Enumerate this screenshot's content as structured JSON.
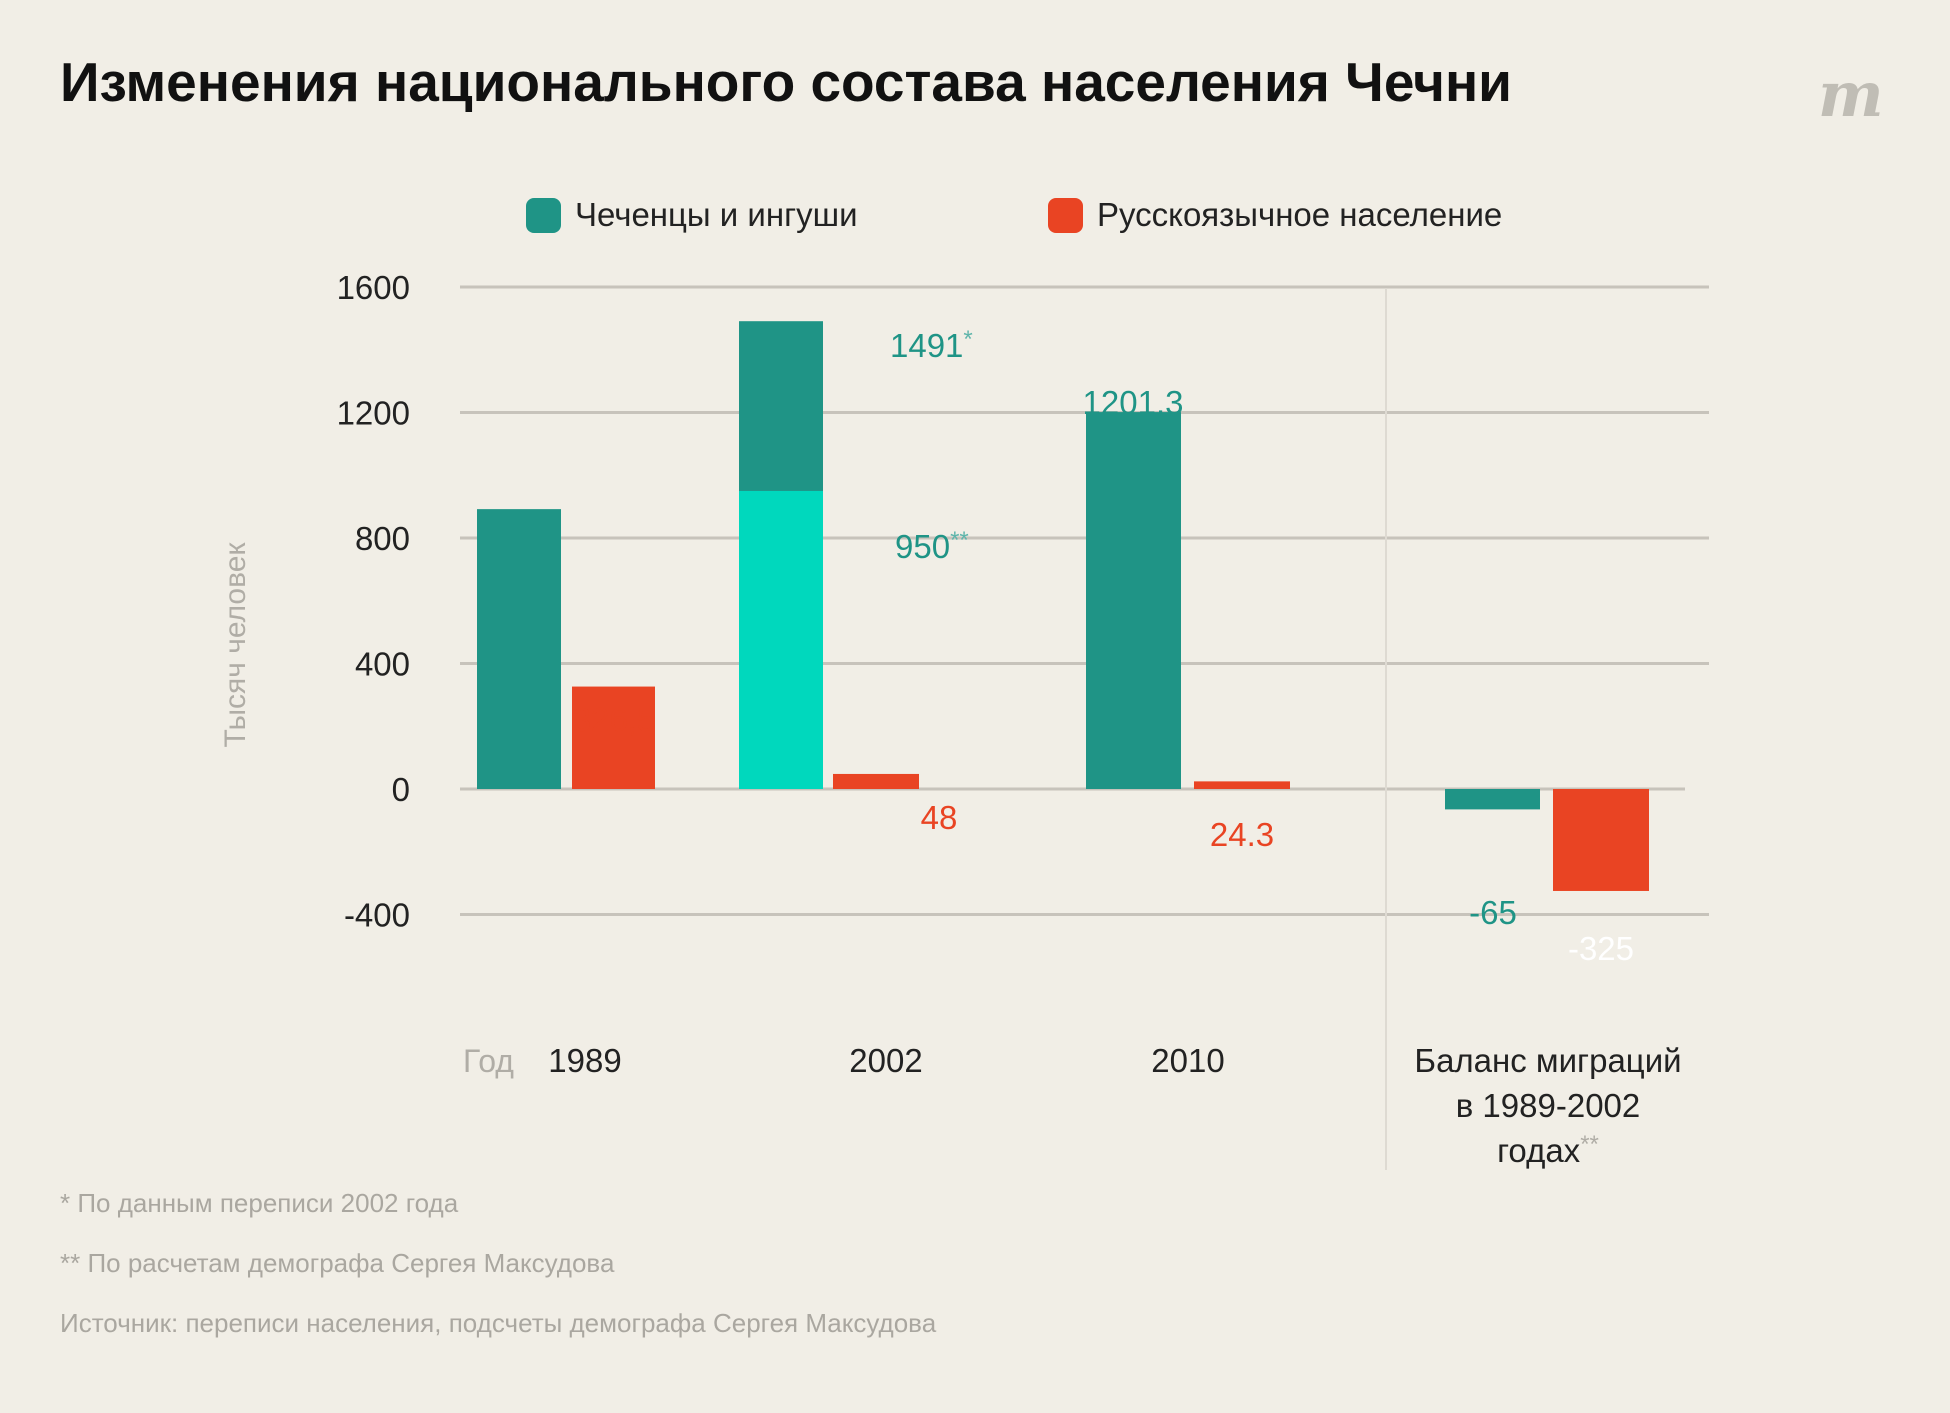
{
  "title": "Изменения национального состава населения Чечни",
  "logo": "m",
  "colors": {
    "chechen": "#1f9486",
    "chechen_light": "#00d8bd",
    "russian": "#e94423",
    "grid": "#c7c3bb",
    "axis_label": "#b0ada6"
  },
  "legend": [
    {
      "label": "Чеченцы и ингуши",
      "color": "#1f9486"
    },
    {
      "label": "Русскоязычное население",
      "color": "#e94423"
    }
  ],
  "chart_data": {
    "type": "bar",
    "ylabel": "Тысяч человек",
    "xlabel": "Год",
    "ylim": [
      -400,
      1600
    ],
    "yticks": [
      "1600",
      "1200",
      "800",
      "400",
      "0",
      "-400"
    ],
    "grid": true,
    "legend_position": "top",
    "categories": [
      "1989",
      "2002",
      "2010",
      "Баланс миграций в 1989-2002 годах**"
    ],
    "category_lines": [
      "1989",
      "2002",
      "2010",
      [
        "Баланс миграций",
        "в 1989-2002",
        "годах"
      ]
    ],
    "series": [
      {
        "name": "Чеченцы и ингуши",
        "values": [
          892,
          1491,
          1201.3,
          -65
        ],
        "labels": [
          "",
          "1491",
          "1201.3",
          "-65"
        ],
        "label_marks": [
          "",
          "*",
          "",
          ""
        ]
      },
      {
        "name": "Русскоязычное население",
        "values": [
          326.5,
          48,
          24.3,
          -325
        ],
        "labels": [
          "326,5",
          "48",
          "24.3",
          "-325"
        ],
        "label_marks": [
          "",
          "",
          "",
          ""
        ]
      }
    ],
    "overlay": {
      "category": "2002",
      "value": 950,
      "label": "950",
      "mark": "**"
    }
  },
  "footnotes": [
    "* По данным переписи 2002 года",
    "** По расчетам демографа Сергея Максудова",
    "Источник: переписи населения, подсчеты демографа Сергея Максудова"
  ]
}
